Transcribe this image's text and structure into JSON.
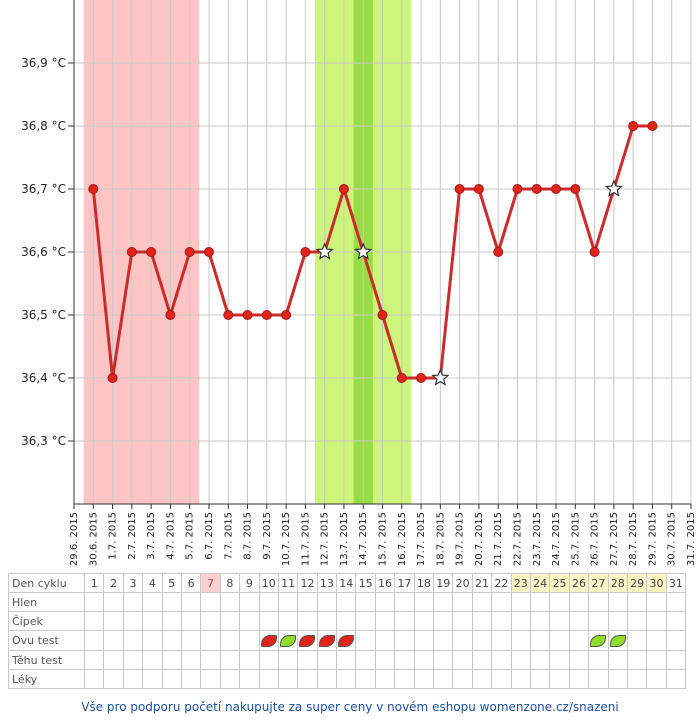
{
  "chart_data": {
    "type": "line",
    "ylim": [
      36.2,
      37.0
    ],
    "y_ticks": [
      "36,3 °C",
      "36,4 °C",
      "36,5 °C",
      "36,6 °C",
      "36,7 °C",
      "36,8 °C",
      "36,9 °C"
    ],
    "y_tick_values": [
      36.3,
      36.4,
      36.5,
      36.6,
      36.7,
      36.8,
      36.9
    ],
    "x_dates": [
      "29.6.2015",
      "30.6.2015",
      "1.7.2015",
      "2.7.2015",
      "3.7.2015",
      "4.7.2015",
      "5.7.2015",
      "6.7.2015",
      "7.7.2015",
      "8.7.2015",
      "9.7.2015",
      "10.7.2015",
      "11.7.2015",
      "12.7.2015",
      "13.7.2015",
      "14.7.2015",
      "15.7.2015",
      "16.7.2015",
      "17.7.2015",
      "18.7.2015",
      "19.7.2015",
      "20.7.2015",
      "21.7.2015",
      "22.7.2015",
      "23.7.2015",
      "24.7.2015",
      "25.7.2015",
      "26.7.2015",
      "27.7.2015",
      "28.7.2015",
      "29.7.2015",
      "30.7.2015",
      "31.7.2015"
    ],
    "series": [
      {
        "x": [
          "30.6.2015",
          "1.7.2015",
          "2.7.2015",
          "3.7.2015",
          "4.7.2015",
          "5.7.2015",
          "6.7.2015",
          "7.7.2015",
          "8.7.2015",
          "9.7.2015",
          "10.7.2015",
          "11.7.2015",
          "12.7.2015",
          "13.7.2015",
          "14.7.2015",
          "15.7.2015",
          "16.7.2015",
          "17.7.2015",
          "18.7.2015",
          "19.7.2015",
          "20.7.2015",
          "21.7.2015",
          "22.7.2015",
          "23.7.2015",
          "24.7.2015",
          "25.7.2015",
          "26.7.2015",
          "27.7.2015",
          "28.7.2015",
          "29.7.2015"
        ],
        "values": [
          36.7,
          36.4,
          36.6,
          36.6,
          36.5,
          36.6,
          36.6,
          36.5,
          36.5,
          36.5,
          36.5,
          36.6,
          36.6,
          36.7,
          36.6,
          36.5,
          36.4,
          36.4,
          36.4,
          36.7,
          36.7,
          36.6,
          36.7,
          36.7,
          36.7,
          36.7,
          36.6,
          36.7,
          36.8,
          36.8
        ],
        "star_markers": [
          "12.7.2015",
          "14.7.2015",
          "18.7.2015",
          "27.7.2015"
        ],
        "color": "#cc2b2b"
      }
    ],
    "bands": [
      {
        "name": "menstruation",
        "from": "30.6.2015",
        "to": "5.7.2015",
        "color": "#ffc4c4"
      },
      {
        "name": "fertile",
        "from": "12.7.2015",
        "to": "16.7.2015",
        "color": "#ccf57a"
      },
      {
        "name": "ovulation",
        "from": "14.7.2015",
        "to": "14.7.2015",
        "color": "#99dd44"
      }
    ],
    "dotted_tail": {
      "from": "29.7.2015",
      "to": "30.7.2015",
      "value": 36.8
    }
  },
  "table": {
    "rows": [
      "Den cyklu",
      "Hlen",
      "Čípek",
      "Ovu test",
      "Těhu test",
      "Léky"
    ],
    "days": [
      "1",
      "2",
      "3",
      "4",
      "5",
      "6",
      "7",
      "8",
      "9",
      "10",
      "11",
      "12",
      "13",
      "14",
      "15",
      "16",
      "17",
      "18",
      "19",
      "20",
      "21",
      "22",
      "23",
      "24",
      "25",
      "26",
      "27",
      "28",
      "29",
      "30",
      "31"
    ],
    "highlight_day": "7",
    "fertile_days": [
      "23",
      "24",
      "25",
      "26",
      "27",
      "28",
      "29",
      "30"
    ],
    "ovu_tests": [
      {
        "day": "10",
        "result": "positive"
      },
      {
        "day": "11",
        "result": "negative"
      },
      {
        "day": "12",
        "result": "positive"
      },
      {
        "day": "13",
        "result": "positive"
      },
      {
        "day": "14",
        "result": "positive"
      },
      {
        "day": "27",
        "result": "negative"
      },
      {
        "day": "28",
        "result": "negative"
      }
    ]
  },
  "footer": "Vše pro podporu početí nakupujte za super ceny v novém eshopu womenzone.cz/snazeni"
}
